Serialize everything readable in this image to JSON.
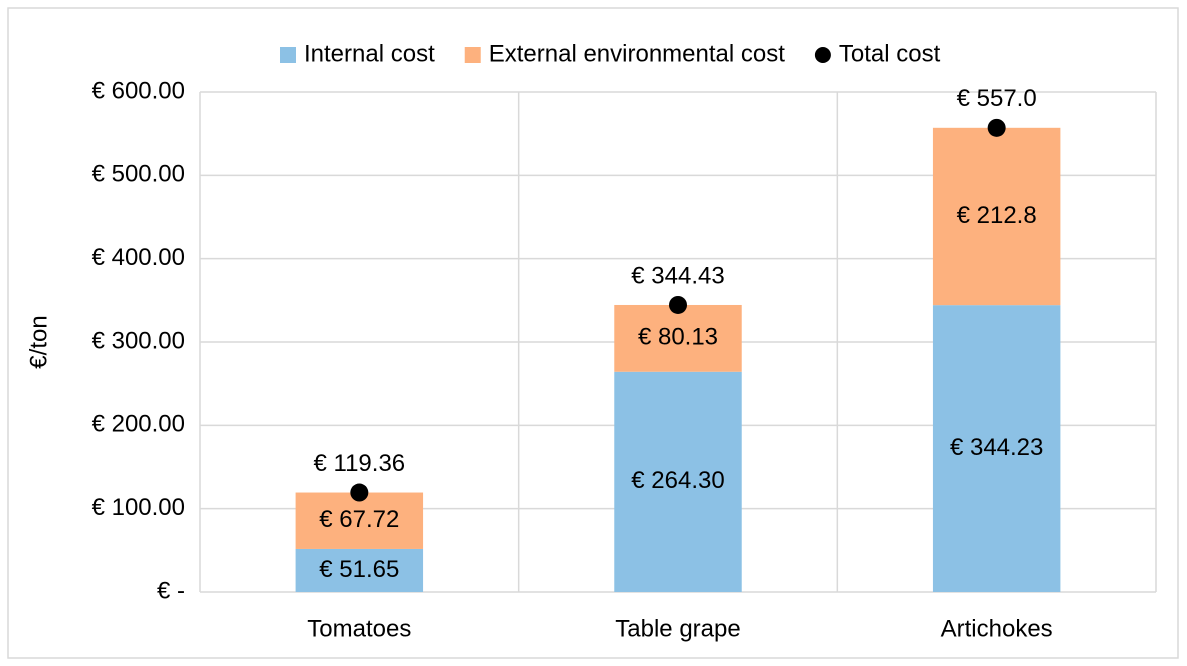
{
  "chart_data": {
    "type": "stacked_bar",
    "y_label": "€/ton",
    "categories": [
      "Tomatoes",
      "Table grape",
      "Artichokes"
    ],
    "series": [
      {
        "name": "Internal cost",
        "color": "#8cc1e5",
        "values": [
          51.65,
          264.3,
          344.23
        ],
        "value_labels": [
          "€ 51.65",
          "€ 264.30",
          "€ 344.23"
        ]
      },
      {
        "name": "External environmental cost",
        "color": "#fdb17e",
        "values": [
          67.72,
          80.13,
          212.8
        ],
        "value_labels": [
          "€ 67.72",
          "€ 80.13",
          "€ 212.8"
        ]
      },
      {
        "name": "Total cost",
        "color": "#000000",
        "type": "scatter",
        "values": [
          119.36,
          344.43,
          557.0
        ],
        "value_labels": [
          "€ 119.36",
          "€ 344.43",
          "€ 557.0"
        ]
      }
    ],
    "ylim": [
      0,
      600
    ],
    "yticks": [
      {
        "value": 0,
        "label": "€ -"
      },
      {
        "value": 100,
        "label": "€ 100.00"
      },
      {
        "value": 200,
        "label": "€ 200.00"
      },
      {
        "value": 300,
        "label": "€ 300.00"
      },
      {
        "value": 400,
        "label": "€ 400.00"
      },
      {
        "value": 500,
        "label": "€ 500.00"
      },
      {
        "value": 600,
        "label": "€ 600.00"
      }
    ],
    "grid": true,
    "legend": "top"
  }
}
